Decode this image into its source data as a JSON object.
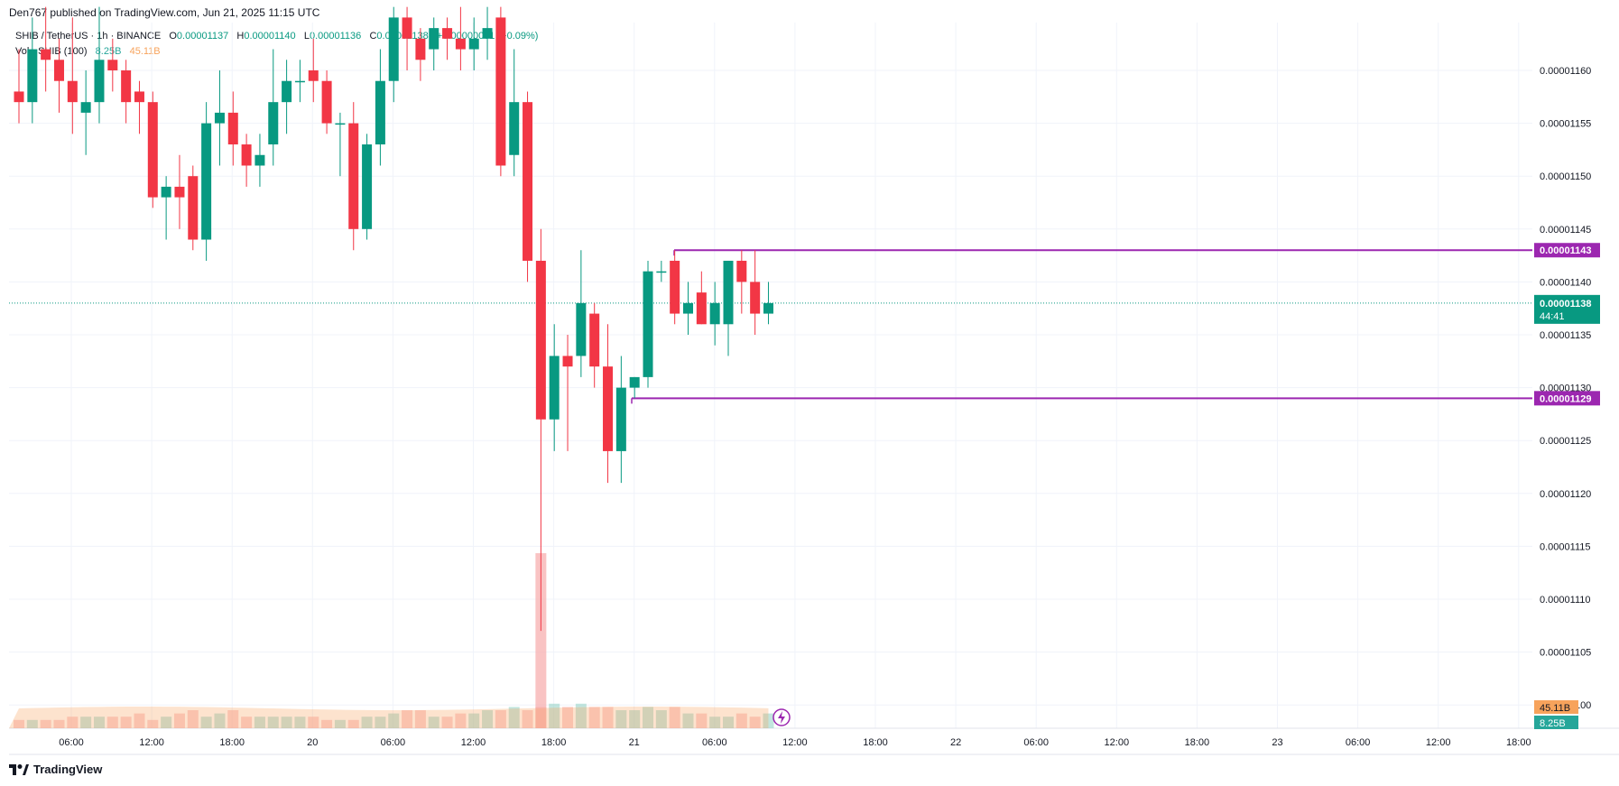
{
  "header": {
    "published": "Den767 published on TradingView.com, Jun 21, 2025 11:15 UTC"
  },
  "legend": {
    "symbol": "SHIB / TetherUS · 1h · BINANCE",
    "open_label": "O",
    "open": "0.00001137",
    "high_label": "H",
    "high": "0.00001140",
    "low_label": "L",
    "low": "0.00001136",
    "close_label": "C",
    "close": "0.00001138",
    "change": "+0.00000001 (+0.09%)",
    "vol_label": "Vol · SHIB (100)",
    "vol_buy": "8.25B",
    "vol_sell": "45.11B"
  },
  "footer": {
    "brand": "TradingView"
  },
  "colors": {
    "up": "#089981",
    "down": "#f23645",
    "level": "#9c27b0",
    "vol_up": "#8fd0c3",
    "vol_down": "#f7a9a9",
    "vol_ma": "#f7a35c"
  },
  "chart_data": {
    "type": "candlestick",
    "price_axis": {
      "min": 1.098e-05,
      "max": 1.163e-05,
      "ticks": [
        "0.00001160",
        "0.00001155",
        "0.00001150",
        "0.00001145",
        "0.00001140",
        "0.00001135",
        "0.00001130",
        "0.00001125",
        "0.00001120",
        "0.00001115",
        "0.00001110",
        "0.00001105",
        "0.00001100"
      ]
    },
    "time_axis": {
      "ticks": [
        "06:00",
        "12:00",
        "18:00",
        "20",
        "06:00",
        "12:00",
        "18:00",
        "21",
        "06:00",
        "12:00",
        "18:00",
        "22",
        "06:00",
        "12:00",
        "18:00",
        "23",
        "06:00",
        "12:00",
        "18:00"
      ]
    },
    "last_price": {
      "value": 1.138e-05,
      "label": "0.00001138",
      "countdown": "44:41"
    },
    "levels": [
      {
        "value": 1.143e-05,
        "label": "0.00001143"
      },
      {
        "value": 1.129e-05,
        "label": "0.00001129"
      }
    ],
    "volume_badges": [
      "45.11B",
      "8.25B"
    ],
    "candles_ohlc": [
      [
        1.158e-05,
        1.162e-05,
        1.155e-05,
        1.157e-05
      ],
      [
        1.157e-05,
        1.165e-05,
        1.155e-05,
        1.162e-05
      ],
      [
        1.162e-05,
        1.166e-05,
        1.158e-05,
        1.161e-05
      ],
      [
        1.161e-05,
        1.163e-05,
        1.156e-05,
        1.159e-05
      ],
      [
        1.159e-05,
        1.165e-05,
        1.154e-05,
        1.157e-05
      ],
      [
        1.156e-05,
        1.16e-05,
        1.152e-05,
        1.157e-05
      ],
      [
        1.157e-05,
        1.166e-05,
        1.155e-05,
        1.161e-05
      ],
      [
        1.161e-05,
        1.163e-05,
        1.158e-05,
        1.16e-05
      ],
      [
        1.16e-05,
        1.161e-05,
        1.155e-05,
        1.157e-05
      ],
      [
        1.158e-05,
        1.159e-05,
        1.154e-05,
        1.157e-05
      ],
      [
        1.157e-05,
        1.158e-05,
        1.147e-05,
        1.148e-05
      ],
      [
        1.148e-05,
        1.15e-05,
        1.144e-05,
        1.149e-05
      ],
      [
        1.149e-05,
        1.152e-05,
        1.145e-05,
        1.148e-05
      ],
      [
        1.15e-05,
        1.151e-05,
        1.143e-05,
        1.144e-05
      ],
      [
        1.144e-05,
        1.157e-05,
        1.142e-05,
        1.155e-05
      ],
      [
        1.155e-05,
        1.16e-05,
        1.151e-05,
        1.156e-05
      ],
      [
        1.156e-05,
        1.158e-05,
        1.151e-05,
        1.153e-05
      ],
      [
        1.153e-05,
        1.154e-05,
        1.149e-05,
        1.151e-05
      ],
      [
        1.151e-05,
        1.154e-05,
        1.149e-05,
        1.152e-05
      ],
      [
        1.153e-05,
        1.162e-05,
        1.151e-05,
        1.157e-05
      ],
      [
        1.157e-05,
        1.161e-05,
        1.154e-05,
        1.159e-05
      ],
      [
        1.159e-05,
        1.161e-05,
        1.157e-05,
        1.159e-05
      ],
      [
        1.16e-05,
        1.163e-05,
        1.157e-05,
        1.159e-05
      ],
      [
        1.159e-05,
        1.16e-05,
        1.154e-05,
        1.155e-05
      ],
      [
        1.155e-05,
        1.156e-05,
        1.15e-05,
        1.155e-05
      ],
      [
        1.155e-05,
        1.157e-05,
        1.143e-05,
        1.145e-05
      ],
      [
        1.145e-05,
        1.154e-05,
        1.144e-05,
        1.153e-05
      ],
      [
        1.153e-05,
        1.162e-05,
        1.151e-05,
        1.159e-05
      ],
      [
        1.159e-05,
        1.166e-05,
        1.157e-05,
        1.165e-05
      ],
      [
        1.165e-05,
        1.166e-05,
        1.16e-05,
        1.163e-05
      ],
      [
        1.163e-05,
        1.164e-05,
        1.159e-05,
        1.161e-05
      ],
      [
        1.162e-05,
        1.165e-05,
        1.16e-05,
        1.164e-05
      ],
      [
        1.164e-05,
        1.165e-05,
        1.161e-05,
        1.163e-05
      ],
      [
        1.163e-05,
        1.166e-05,
        1.16e-05,
        1.162e-05
      ],
      [
        1.162e-05,
        1.165e-05,
        1.16e-05,
        1.163e-05
      ],
      [
        1.163e-05,
        1.166e-05,
        1.161e-05,
        1.164e-05
      ],
      [
        1.165e-05,
        1.166e-05,
        1.15e-05,
        1.151e-05
      ],
      [
        1.152e-05,
        1.162e-05,
        1.15e-05,
        1.157e-05
      ],
      [
        1.157e-05,
        1.158e-05,
        1.14e-05,
        1.142e-05
      ],
      [
        1.142e-05,
        1.145e-05,
        1.107e-05,
        1.127e-05
      ],
      [
        1.127e-05,
        1.136e-05,
        1.124e-05,
        1.133e-05
      ],
      [
        1.133e-05,
        1.135e-05,
        1.124e-05,
        1.132e-05
      ],
      [
        1.133e-05,
        1.143e-05,
        1.131e-05,
        1.138e-05
      ],
      [
        1.137e-05,
        1.138e-05,
        1.13e-05,
        1.132e-05
      ],
      [
        1.132e-05,
        1.136e-05,
        1.121e-05,
        1.124e-05
      ],
      [
        1.124e-05,
        1.133e-05,
        1.121e-05,
        1.13e-05
      ],
      [
        1.13e-05,
        1.131e-05,
        1.129e-05,
        1.131e-05
      ],
      [
        1.131e-05,
        1.142e-05,
        1.13e-05,
        1.141e-05
      ],
      [
        1.141e-05,
        1.142e-05,
        1.14e-05,
        1.141e-05
      ],
      [
        1.142e-05,
        1.143e-05,
        1.136e-05,
        1.137e-05
      ],
      [
        1.137e-05,
        1.14e-05,
        1.135e-05,
        1.138e-05
      ],
      [
        1.139e-05,
        1.141e-05,
        1.136e-05,
        1.136e-05
      ],
      [
        1.136e-05,
        1.14e-05,
        1.134e-05,
        1.138e-05
      ],
      [
        1.136e-05,
        1.142e-05,
        1.133e-05,
        1.142e-05
      ],
      [
        1.142e-05,
        1.143e-05,
        1.137e-05,
        1.14e-05
      ],
      [
        1.14e-05,
        1.143e-05,
        1.135e-05,
        1.137e-05
      ],
      [
        1.137e-05,
        1.14e-05,
        1.136e-05,
        1.138e-05
      ]
    ],
    "volume_relative": [
      2,
      2,
      2,
      2,
      3,
      3,
      3,
      3,
      3,
      4,
      2,
      3,
      4,
      5,
      3,
      4,
      5,
      3,
      3,
      3,
      3,
      3,
      3,
      2,
      2,
      2,
      3,
      3,
      4,
      5,
      5,
      3,
      3,
      4,
      4,
      5,
      5,
      6,
      5,
      6,
      7,
      6,
      7,
      6,
      6,
      5,
      5,
      6,
      5,
      6,
      4,
      4,
      3,
      3,
      4,
      3,
      4
    ]
  }
}
